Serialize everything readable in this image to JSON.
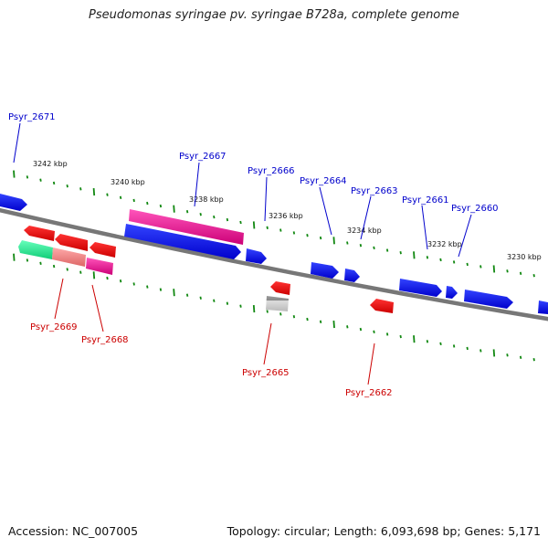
{
  "title": "Pseudomonas syringae pv. syringae B728a, complete genome",
  "footer": {
    "accession": "Accession: NC_007005",
    "topology": "Topology: circular; Length: 6,093,698 bp; Genes: 5,171"
  },
  "scale_labels": [
    "3242 kbp",
    "3240 kbp",
    "3238 kbp",
    "3236 kbp",
    "3234 kbp",
    "3232 kbp",
    "3230 kbp"
  ],
  "forward_gene_labels": [
    "Psyr_2671",
    "Psyr_2667",
    "Psyr_2666",
    "Psyr_2664",
    "Psyr_2663",
    "Psyr_2661",
    "Psyr_2660"
  ],
  "reverse_gene_labels": [
    "Psyr_2669",
    "Psyr_2668",
    "Psyr_2665",
    "Psyr_2662"
  ],
  "colors": {
    "forward_cds": "#0000ee",
    "reverse_cds": "#ee0000",
    "highlight_pink": "#ee1199",
    "highlight_green": "#22ee99",
    "salmon": "#f08080",
    "grey_gene": "#bbbbbb",
    "backbone": "#777777",
    "tick": "#118811"
  }
}
